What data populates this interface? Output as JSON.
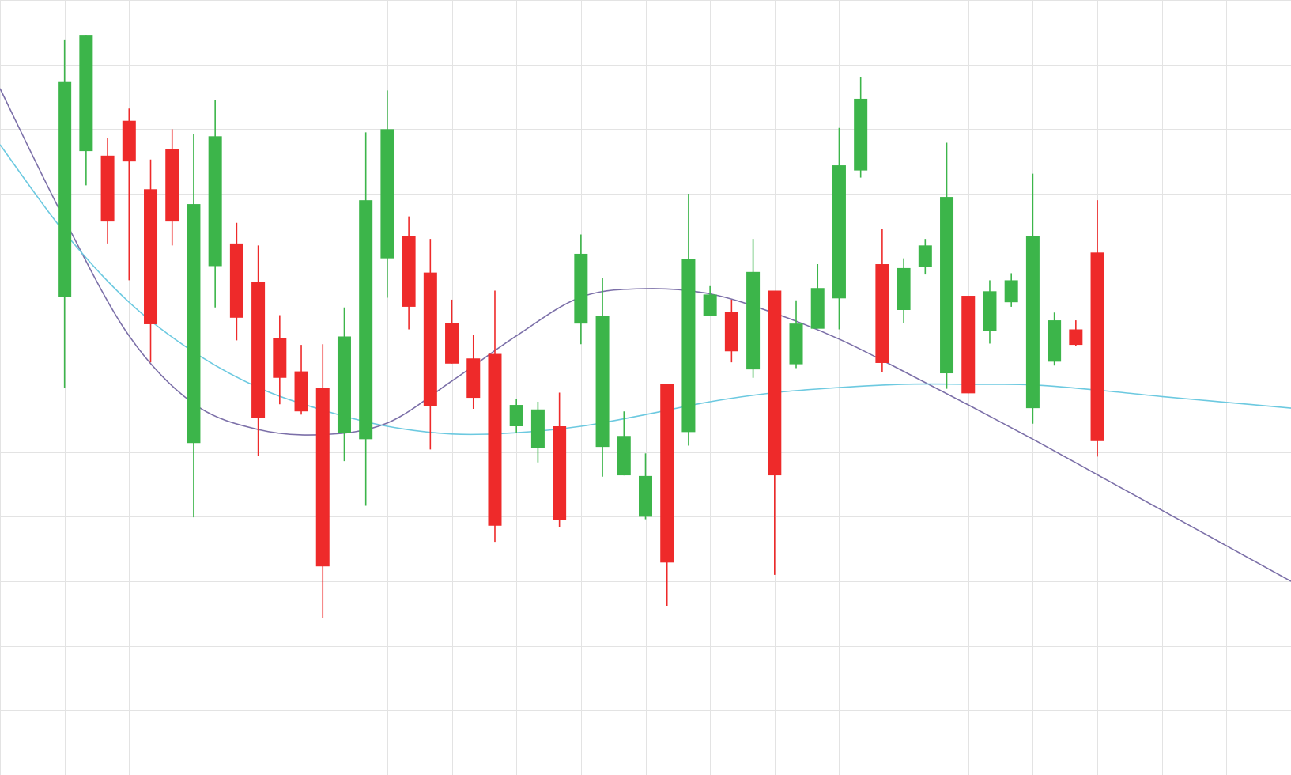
{
  "chart_data": {
    "type": "candlestick",
    "title": "",
    "xlabel": "",
    "ylabel": "",
    "xlim": [
      0,
      60
    ],
    "ylim": [
      0,
      12
    ],
    "grid": true,
    "colors": {
      "up": "#3cb54a",
      "down": "#ee2a2a",
      "ma_short": "#7b6fa8",
      "ma_long": "#6cc9e0",
      "grid": "#e3e3e3"
    },
    "candles": [
      {
        "x": 3,
        "open": 7.4,
        "close": 10.73,
        "high": 11.39,
        "low": 6.0
      },
      {
        "x": 4,
        "open": 9.66,
        "close": 11.46,
        "high": 11.46,
        "low": 9.13
      },
      {
        "x": 5,
        "open": 9.59,
        "close": 8.57,
        "high": 9.86,
        "low": 8.23
      },
      {
        "x": 6,
        "open": 10.13,
        "close": 9.5,
        "high": 10.32,
        "low": 7.66
      },
      {
        "x": 7,
        "open": 9.07,
        "close": 6.98,
        "high": 9.53,
        "low": 6.39
      },
      {
        "x": 8,
        "open": 9.69,
        "close": 8.57,
        "high": 10.0,
        "low": 8.2
      },
      {
        "x": 9,
        "open": 5.14,
        "close": 8.84,
        "high": 9.93,
        "low": 3.99
      },
      {
        "x": 10,
        "open": 7.88,
        "close": 9.89,
        "high": 10.45,
        "low": 7.24
      },
      {
        "x": 11,
        "open": 8.23,
        "close": 7.08,
        "high": 8.55,
        "low": 6.73
      },
      {
        "x": 12,
        "open": 7.63,
        "close": 5.53,
        "high": 8.2,
        "low": 4.94
      },
      {
        "x": 13,
        "open": 6.77,
        "close": 6.15,
        "high": 7.12,
        "low": 5.74
      },
      {
        "x": 14,
        "open": 6.25,
        "close": 5.63,
        "high": 6.66,
        "low": 5.58
      },
      {
        "x": 15,
        "open": 5.99,
        "close": 3.23,
        "high": 6.67,
        "low": 2.43
      },
      {
        "x": 16,
        "open": 5.3,
        "close": 6.79,
        "high": 7.24,
        "low": 4.86
      },
      {
        "x": 17,
        "open": 5.2,
        "close": 8.9,
        "high": 9.95,
        "low": 4.17
      },
      {
        "x": 18,
        "open": 8.0,
        "close": 10.0,
        "high": 10.6,
        "low": 7.39
      },
      {
        "x": 19,
        "open": 8.35,
        "close": 7.25,
        "high": 8.65,
        "low": 6.9
      },
      {
        "x": 20,
        "open": 7.78,
        "close": 5.71,
        "high": 8.3,
        "low": 5.04
      },
      {
        "x": 21,
        "open": 7.0,
        "close": 6.37,
        "high": 7.36,
        "low": 6.37
      },
      {
        "x": 22,
        "open": 6.45,
        "close": 5.84,
        "high": 6.82,
        "low": 5.67
      },
      {
        "x": 23,
        "open": 6.52,
        "close": 3.86,
        "high": 7.5,
        "low": 3.61
      },
      {
        "x": 24,
        "open": 5.4,
        "close": 5.73,
        "high": 5.82,
        "low": 5.3
      },
      {
        "x": 25,
        "open": 5.06,
        "close": 5.66,
        "high": 5.78,
        "low": 4.84
      },
      {
        "x": 26,
        "open": 5.4,
        "close": 3.95,
        "high": 5.92,
        "low": 3.84
      },
      {
        "x": 27,
        "open": 6.99,
        "close": 8.07,
        "high": 8.37,
        "low": 6.67
      },
      {
        "x": 28,
        "open": 5.08,
        "close": 7.11,
        "high": 7.69,
        "low": 4.62
      },
      {
        "x": 29,
        "open": 4.64,
        "close": 5.25,
        "high": 5.63,
        "low": 4.64
      },
      {
        "x": 30,
        "open": 4.0,
        "close": 4.63,
        "high": 4.98,
        "low": 3.96
      },
      {
        "x": 31,
        "open": 6.06,
        "close": 3.29,
        "high": 6.06,
        "low": 2.62
      },
      {
        "x": 32,
        "open": 5.31,
        "close": 7.99,
        "high": 9.0,
        "low": 5.1
      },
      {
        "x": 33,
        "open": 7.11,
        "close": 7.44,
        "high": 7.57,
        "low": 7.11
      },
      {
        "x": 34,
        "open": 7.17,
        "close": 6.56,
        "high": 7.36,
        "low": 6.39
      },
      {
        "x": 35,
        "open": 6.28,
        "close": 7.79,
        "high": 8.3,
        "low": 6.15
      },
      {
        "x": 36,
        "open": 7.5,
        "close": 4.64,
        "high": 7.5,
        "low": 3.1
      },
      {
        "x": 37,
        "open": 6.36,
        "close": 6.99,
        "high": 7.35,
        "low": 6.3
      },
      {
        "x": 38,
        "open": 6.91,
        "close": 7.54,
        "high": 7.91,
        "low": 6.91
      },
      {
        "x": 39,
        "open": 7.38,
        "close": 9.44,
        "high": 10.02,
        "low": 6.9
      },
      {
        "x": 40,
        "open": 9.36,
        "close": 10.47,
        "high": 10.81,
        "low": 9.25
      },
      {
        "x": 41,
        "open": 7.91,
        "close": 6.38,
        "high": 8.45,
        "low": 6.24
      },
      {
        "x": 42,
        "open": 7.2,
        "close": 7.85,
        "high": 8.0,
        "low": 7.0
      },
      {
        "x": 43,
        "open": 7.87,
        "close": 8.2,
        "high": 8.3,
        "low": 7.75
      },
      {
        "x": 44,
        "open": 6.22,
        "close": 8.95,
        "high": 9.79,
        "low": 5.98
      },
      {
        "x": 45,
        "open": 7.42,
        "close": 5.91,
        "high": 7.42,
        "low": 5.91
      },
      {
        "x": 46,
        "open": 6.87,
        "close": 7.49,
        "high": 7.66,
        "low": 6.68
      },
      {
        "x": 47,
        "open": 7.32,
        "close": 7.66,
        "high": 7.77,
        "low": 7.25
      },
      {
        "x": 48,
        "open": 5.68,
        "close": 8.35,
        "high": 9.31,
        "low": 5.44
      },
      {
        "x": 49,
        "open": 6.4,
        "close": 7.04,
        "high": 7.16,
        "low": 6.34
      },
      {
        "x": 50,
        "open": 6.9,
        "close": 6.66,
        "high": 7.04,
        "low": 6.64
      },
      {
        "x": 51,
        "open": 8.09,
        "close": 5.17,
        "high": 8.9,
        "low": 4.93
      }
    ],
    "series": [
      {
        "type": "line",
        "color": "#7b6fa8",
        "x": [
          0,
          3,
          6,
          9,
          12,
          15,
          18,
          21,
          24,
          27,
          30,
          33,
          36,
          39,
          42,
          45,
          48,
          51,
          54,
          57,
          60
        ],
        "y": [
          10.63,
          8.6,
          6.8,
          5.75,
          5.35,
          5.27,
          5.45,
          6.1,
          6.8,
          7.4,
          7.53,
          7.45,
          7.15,
          6.75,
          6.25,
          5.73,
          5.2,
          4.65,
          4.1,
          3.55,
          3.0
        ]
      },
      {
        "type": "line",
        "color": "#6cc9e0",
        "x": [
          0,
          3,
          6,
          9,
          12,
          15,
          18,
          21,
          24,
          27,
          30,
          33,
          36,
          39,
          42,
          45,
          48,
          51,
          54,
          57,
          60
        ],
        "y": [
          9.76,
          8.4,
          7.32,
          6.55,
          6.0,
          5.65,
          5.4,
          5.28,
          5.3,
          5.4,
          5.58,
          5.78,
          5.92,
          6.0,
          6.05,
          6.05,
          6.04,
          5.96,
          5.86,
          5.77,
          5.68
        ]
      }
    ]
  }
}
